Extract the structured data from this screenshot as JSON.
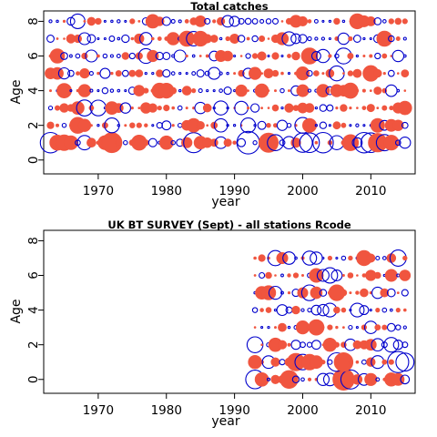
{
  "chart_data": [
    {
      "type": "scatter",
      "title": "Total catches",
      "xlabel": "year",
      "ylabel": "Age",
      "xlim": [
        1962,
        2016.5
      ],
      "ylim": [
        -0.8,
        8.6
      ],
      "x_ticks": [
        "1970",
        "1980",
        "1990",
        "2000",
        "2010"
      ],
      "y_ticks": [
        "0",
        "2",
        "4",
        "6",
        "8"
      ],
      "years": [
        1963,
        2015
      ],
      "ages": [
        1,
        8
      ],
      "encoding": "bubble area = residual magnitude; filled = positive, open = negative",
      "colors": {
        "positive": "#f0553f",
        "negative": "#0000cc"
      }
    },
    {
      "type": "scatter",
      "title": "UK BT SURVEY (Sept) - all stations Rcode",
      "xlabel": "year",
      "ylabel": "Age",
      "xlim": [
        1962,
        2016.5
      ],
      "ylim": [
        -0.8,
        8.6
      ],
      "x_ticks": [
        "1970",
        "1980",
        "1990",
        "2000",
        "2010"
      ],
      "y_ticks": [
        "0",
        "2",
        "4",
        "6",
        "8"
      ],
      "years": [
        1993,
        2015
      ],
      "ages": [
        0,
        7
      ],
      "encoding": "bubble area = residual magnitude; filled = positive, open = negative",
      "colors": {
        "positive": "#f0553f",
        "negative": "#0000cc"
      }
    }
  ]
}
